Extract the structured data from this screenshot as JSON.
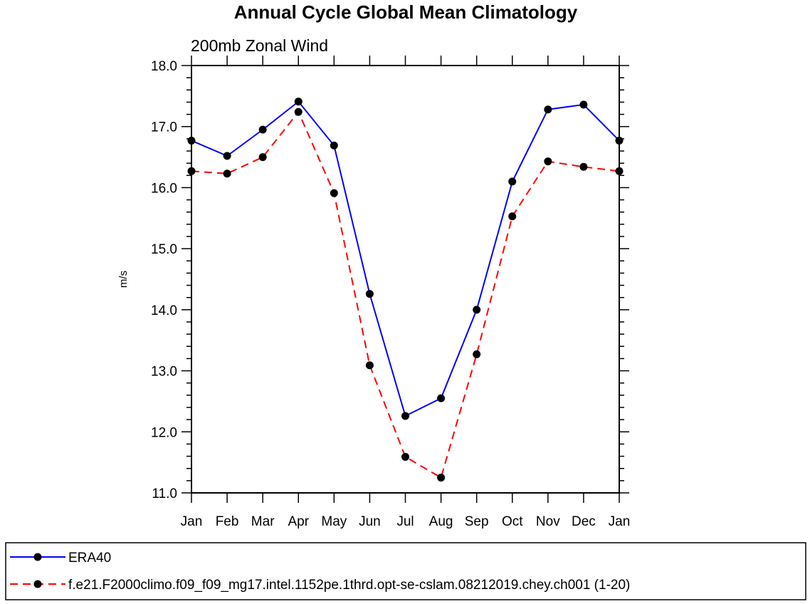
{
  "chart_data": {
    "type": "line",
    "title": "Annual Cycle Global Mean Climatology",
    "subtitle": "200mb Zonal Wind",
    "xlabel": "",
    "ylabel": "m/s",
    "categories": [
      "Jan",
      "Feb",
      "Mar",
      "Apr",
      "May",
      "Jun",
      "Jul",
      "Aug",
      "Sep",
      "Oct",
      "Nov",
      "Dec",
      "Jan"
    ],
    "ylim": [
      11.0,
      18.0
    ],
    "yticks": [
      "11.0",
      "12.0",
      "13.0",
      "14.0",
      "15.0",
      "16.0",
      "17.0",
      "18.0"
    ],
    "grid": false,
    "legend_position": "bottom",
    "series": [
      {
        "name": "ERA40",
        "color": "#0000ff",
        "line_style": "solid",
        "marker": "filled-circle",
        "values": [
          16.77,
          16.52,
          16.95,
          17.41,
          16.69,
          14.26,
          12.26,
          12.55,
          14.0,
          16.1,
          17.28,
          17.36,
          16.77
        ]
      },
      {
        "name": "f.e21.F2000climo.f09_f09_mg17.intel.1152pe.1thrd.opt-se-cslam.08212019.chey.ch001 (1-20)",
        "color": "#ff0000",
        "line_style": "dashed",
        "marker": "filled-circle",
        "values": [
          16.27,
          16.23,
          16.5,
          17.24,
          15.91,
          13.09,
          11.59,
          11.25,
          13.27,
          15.53,
          16.43,
          16.34,
          16.27
        ]
      }
    ]
  }
}
